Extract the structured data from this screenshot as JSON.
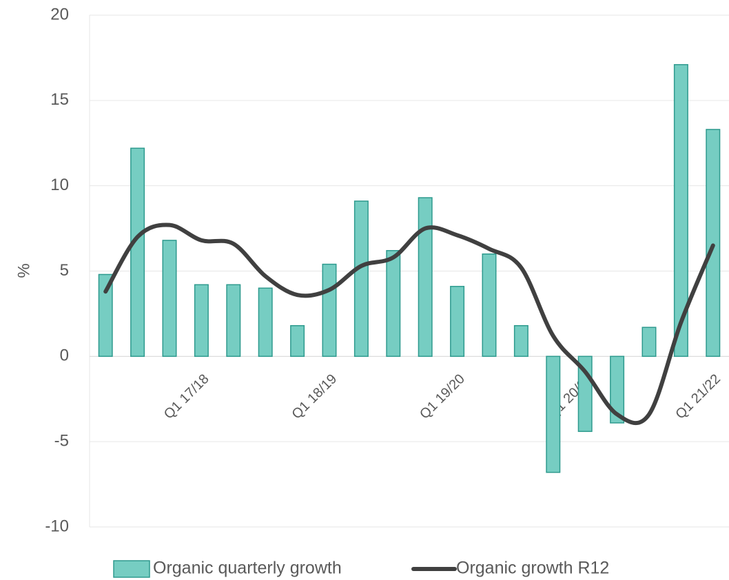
{
  "chart_data": {
    "type": "bar_line",
    "y_label": "%",
    "categories": [
      null,
      null,
      null,
      "Q1 17/18",
      null,
      null,
      null,
      "Q1 18/19",
      null,
      null,
      null,
      "Q1 19/20",
      null,
      null,
      null,
      "Q1 20/21",
      null,
      null,
      null,
      "Q1 21/22"
    ],
    "series": [
      {
        "name": "Organic quarterly growth",
        "type": "bar",
        "color": "#76cdc2",
        "stroke": "#2e9a8e",
        "values": [
          4.8,
          12.2,
          6.8,
          4.2,
          4.2,
          4.0,
          1.8,
          5.4,
          9.1,
          6.2,
          9.3,
          4.1,
          6.0,
          1.8,
          -6.8,
          -4.4,
          -3.9,
          1.7,
          17.1,
          13.3
        ]
      },
      {
        "name": "Organic growth R12",
        "type": "line",
        "color": "#404040",
        "values": [
          3.8,
          7.0,
          7.7,
          6.8,
          6.6,
          4.7,
          3.6,
          3.9,
          5.3,
          5.8,
          7.5,
          7.1,
          6.3,
          5.2,
          1.2,
          -0.9,
          -3.4,
          -3.4,
          2.0,
          6.5
        ]
      }
    ],
    "ylim": [
      -10,
      20
    ],
    "yticks": [
      -10,
      -5,
      0,
      5,
      10,
      15,
      20
    ],
    "grid": true
  }
}
